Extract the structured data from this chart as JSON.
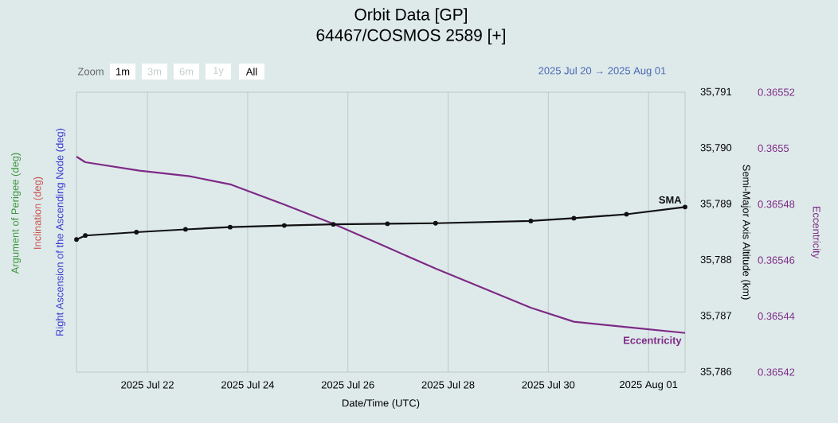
{
  "chart_data": {
    "type": "line",
    "title": "Orbit Data [GP]",
    "subtitle": "64467/COSMOS 2589 [+]",
    "xlabel": "Date/Time (UTC)",
    "ylabel": "Right Ascension of the Ascending Node (deg)",
    "y2label": "Semi-Major Axis Altitude (km)",
    "y3label": "Eccentricity",
    "annotations": [
      "Inclination (deg)",
      "Argument of Perigee (deg)",
      "Zoom",
      "1m",
      "3m",
      "6m",
      "1y",
      "All",
      "2025 Jul 20  →  2025 Aug 01"
    ],
    "xlim": [
      "2025-07-20T14:00",
      "2025-08-01T17:30"
    ],
    "xticks": [
      {
        "value": "2025-07-22",
        "label": "2025 Jul 22"
      },
      {
        "value": "2025-07-24",
        "label": "2025 Jul 24"
      },
      {
        "value": "2025-07-26",
        "label": "2025 Jul 26"
      },
      {
        "value": "2025-07-28",
        "label": "2025 Jul 28"
      },
      {
        "value": "2025-07-30",
        "label": "2025 Jul 30"
      },
      {
        "value": "2025-08-01",
        "label": "2025 Aug 01"
      }
    ],
    "y2lim": [
      35786,
      35791
    ],
    "y2ticks": [
      {
        "value": 35786,
        "label": "35,786"
      },
      {
        "value": 35787,
        "label": "35,787"
      },
      {
        "value": 35788,
        "label": "35,788"
      },
      {
        "value": 35789,
        "label": "35,789"
      },
      {
        "value": 35790,
        "label": "35,790"
      },
      {
        "value": 35791,
        "label": "35,791"
      }
    ],
    "y3lim": [
      0.36542,
      0.36552
    ],
    "y3ticks": [
      0.36542,
      0.36544,
      0.36546,
      0.36548,
      0.3655,
      0.36552
    ],
    "grid": "x",
    "line_style": "solid",
    "series": [
      {
        "name": "SMA",
        "axis": "y2",
        "color": "#111111",
        "marker": "circle",
        "x": [
          "2025-07-20T14:00",
          "2025-07-20T18:14",
          "2025-07-21T18:43",
          "2025-07-22T18:14",
          "2025-07-23T15:36",
          "2025-07-24T17:31",
          "2025-07-25T17:02",
          "2025-07-26T18:57",
          "2025-07-27T18:00",
          "2025-07-29T15:36",
          "2025-07-30T12:14",
          "2025-07-31T13:26",
          "2025-08-01T17:30"
        ],
        "values": [
          35788.37,
          35788.44,
          35788.5,
          35788.55,
          35788.59,
          35788.62,
          35788.64,
          35788.65,
          35788.66,
          35788.7,
          35788.75,
          35788.82,
          35788.95
        ]
      },
      {
        "name": "Eccentricity",
        "axis": "y3",
        "color": "#7e2a86",
        "marker": "none",
        "x": [
          "2025-07-20T14:00",
          "2025-07-20T18:14",
          "2025-07-21T20:10",
          "2025-07-22T20:10",
          "2025-07-23T16:05",
          "2025-07-24T17:02",
          "2025-07-25T17:02",
          "2025-07-26T17:31",
          "2025-07-27T18:00",
          "2025-07-29T15:36",
          "2025-07-30T12:14",
          "2025-07-31T14:24",
          "2025-08-01T17:30"
        ],
        "values": [
          0.365497,
          0.365495,
          0.365492,
          0.36549,
          0.365487,
          0.36548,
          0.365473,
          0.365465,
          0.365457,
          0.365443,
          0.365438,
          0.365436,
          0.365434
        ]
      }
    ]
  }
}
